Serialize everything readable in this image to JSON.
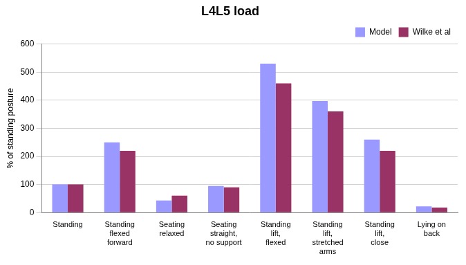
{
  "chart_data": {
    "type": "bar",
    "title": "L4L5 load",
    "y_label": "% of standing posture",
    "categories": [
      "Standing",
      "Standing flexed forward",
      "Seating relaxed",
      "Seating straight, no support",
      "Standing lift, flexed",
      "Standing lift, stretched arms",
      "Standing lift, close",
      "Lying on back"
    ],
    "series": [
      {
        "name": "Model",
        "color": "#9999ff",
        "values": [
          100,
          250,
          43,
          95,
          530,
          397,
          260,
          22
        ]
      },
      {
        "name": "Wilke et al",
        "color": "#993366",
        "values": [
          100,
          220,
          60,
          90,
          460,
          360,
          220,
          18
        ]
      }
    ],
    "ylim": [
      0,
      600
    ],
    "yticks": [
      0,
      100,
      200,
      300,
      400,
      500,
      600
    ],
    "grid": true,
    "legend": "upper right"
  }
}
